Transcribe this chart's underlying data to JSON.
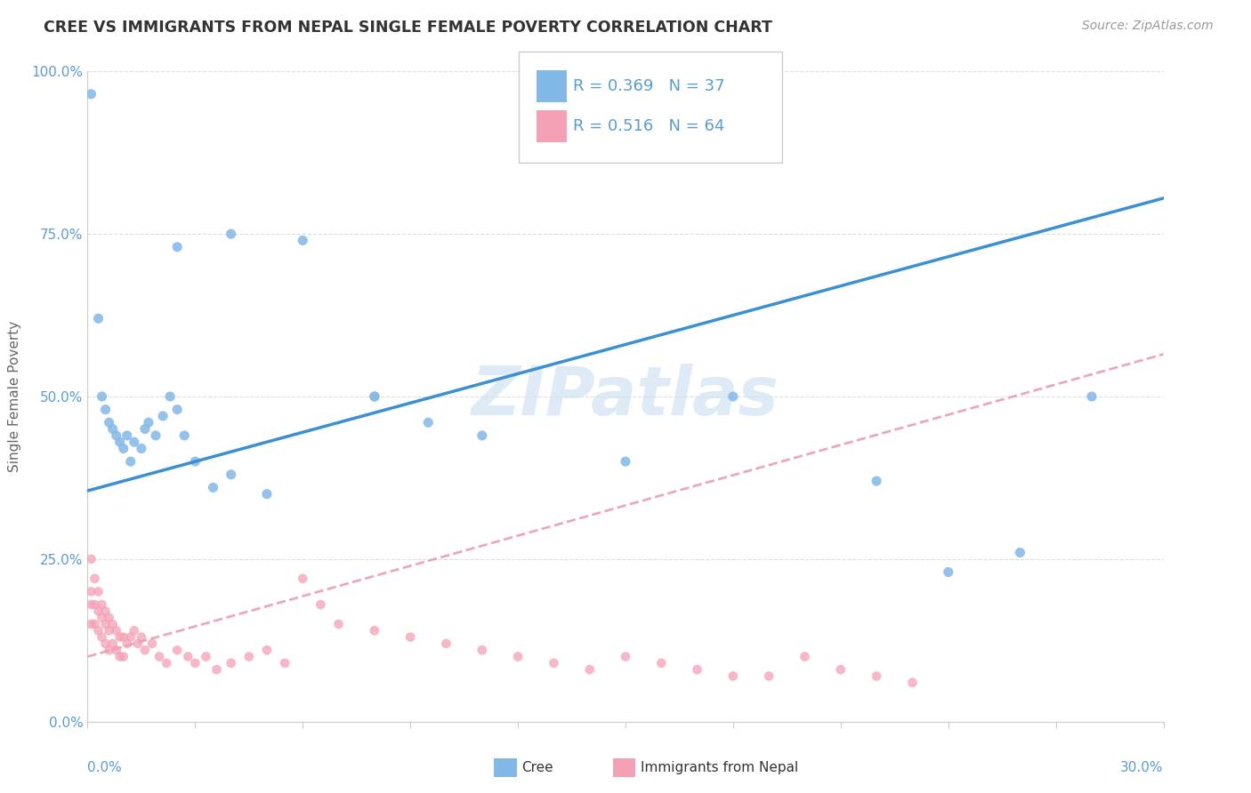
{
  "title": "CREE VS IMMIGRANTS FROM NEPAL SINGLE FEMALE POVERTY CORRELATION CHART",
  "source": "Source: ZipAtlas.com",
  "ylabel": "Single Female Poverty",
  "ytick_labels": [
    "0.0%",
    "25.0%",
    "50.0%",
    "75.0%",
    "100.0%"
  ],
  "ytick_values": [
    0.0,
    0.25,
    0.5,
    0.75,
    1.0
  ],
  "xmin": 0.0,
  "xmax": 0.3,
  "ymin": 0.0,
  "ymax": 1.0,
  "cree_R": 0.369,
  "cree_N": 37,
  "nepal_R": 0.516,
  "nepal_N": 64,
  "cree_color": "#82b8e8",
  "nepal_color": "#f4a0b5",
  "cree_line_color": "#3b8fd4",
  "nepal_line_color": "#e87090",
  "dashed_line_color": "#e8a0b0",
  "watermark_color": "#c8dff0",
  "background_color": "#ffffff",
  "grid_color": "#dddddd",
  "axis_color": "#cccccc",
  "tick_color": "#5b9bd5",
  "ylabel_color": "#666666",
  "title_color": "#333333",
  "source_color": "#999999",
  "legend_text_color": "#5b9bd5",
  "cree_line_intercept": 0.355,
  "cree_line_slope": 1.5,
  "nepal_line_intercept": 0.1,
  "nepal_line_slope": 1.55,
  "cree_x": [
    0.001,
    0.003,
    0.004,
    0.005,
    0.006,
    0.007,
    0.008,
    0.009,
    0.01,
    0.011,
    0.012,
    0.013,
    0.015,
    0.016,
    0.017,
    0.019,
    0.021,
    0.023,
    0.025,
    0.027,
    0.03,
    0.035,
    0.04,
    0.05,
    0.06,
    0.08,
    0.095,
    0.11,
    0.15,
    0.18,
    0.22,
    0.24,
    0.26,
    0.28,
    0.025,
    0.04,
    0.08
  ],
  "cree_y": [
    0.965,
    0.62,
    0.5,
    0.48,
    0.46,
    0.45,
    0.44,
    0.43,
    0.42,
    0.44,
    0.4,
    0.43,
    0.42,
    0.45,
    0.46,
    0.44,
    0.47,
    0.5,
    0.48,
    0.44,
    0.4,
    0.36,
    0.38,
    0.35,
    0.74,
    0.5,
    0.46,
    0.44,
    0.4,
    0.5,
    0.37,
    0.23,
    0.26,
    0.5,
    0.73,
    0.75,
    0.5
  ],
  "nepal_x": [
    0.001,
    0.001,
    0.001,
    0.001,
    0.002,
    0.002,
    0.002,
    0.003,
    0.003,
    0.003,
    0.004,
    0.004,
    0.004,
    0.005,
    0.005,
    0.005,
    0.006,
    0.006,
    0.006,
    0.007,
    0.007,
    0.008,
    0.008,
    0.009,
    0.009,
    0.01,
    0.01,
    0.011,
    0.012,
    0.013,
    0.014,
    0.015,
    0.016,
    0.018,
    0.02,
    0.022,
    0.025,
    0.028,
    0.03,
    0.033,
    0.036,
    0.04,
    0.045,
    0.05,
    0.055,
    0.06,
    0.065,
    0.07,
    0.08,
    0.09,
    0.1,
    0.11,
    0.12,
    0.13,
    0.14,
    0.15,
    0.16,
    0.17,
    0.18,
    0.19,
    0.2,
    0.21,
    0.22,
    0.23
  ],
  "nepal_y": [
    0.25,
    0.2,
    0.18,
    0.15,
    0.22,
    0.18,
    0.15,
    0.2,
    0.17,
    0.14,
    0.18,
    0.16,
    0.13,
    0.17,
    0.15,
    0.12,
    0.16,
    0.14,
    0.11,
    0.15,
    0.12,
    0.14,
    0.11,
    0.13,
    0.1,
    0.13,
    0.1,
    0.12,
    0.13,
    0.14,
    0.12,
    0.13,
    0.11,
    0.12,
    0.1,
    0.09,
    0.11,
    0.1,
    0.09,
    0.1,
    0.08,
    0.09,
    0.1,
    0.11,
    0.09,
    0.22,
    0.18,
    0.15,
    0.14,
    0.13,
    0.12,
    0.11,
    0.1,
    0.09,
    0.08,
    0.1,
    0.09,
    0.08,
    0.07,
    0.07,
    0.1,
    0.08,
    0.07,
    0.06
  ],
  "watermark": "ZIPatlas"
}
